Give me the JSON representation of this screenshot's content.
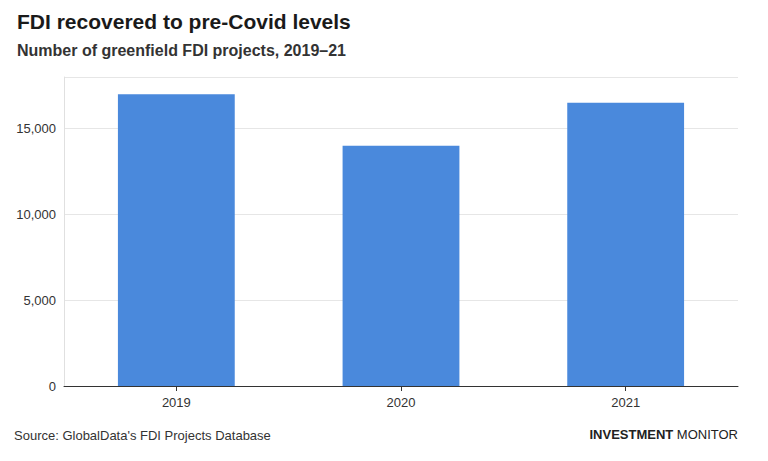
{
  "chart_data": {
    "type": "bar",
    "title": "FDI recovered to pre-Covid levels",
    "subtitle": "Number of greenfield FDI projects, 2019–21",
    "categories": [
      "2019",
      "2020",
      "2021"
    ],
    "values": [
      17000,
      14000,
      16500
    ],
    "color": "#4a89dc",
    "ylim": [
      0,
      18000
    ],
    "yticks": [
      0,
      {
        "value": 5000,
        "label": "5,000"
      },
      {
        "value": 10000,
        "label": "10,000"
      },
      {
        "value": 15000,
        "label": "15,000"
      }
    ],
    "grid": true,
    "source": "Source: GlobalData's FDI Projects Database",
    "brand": "INVESTMENT MONITOR"
  }
}
